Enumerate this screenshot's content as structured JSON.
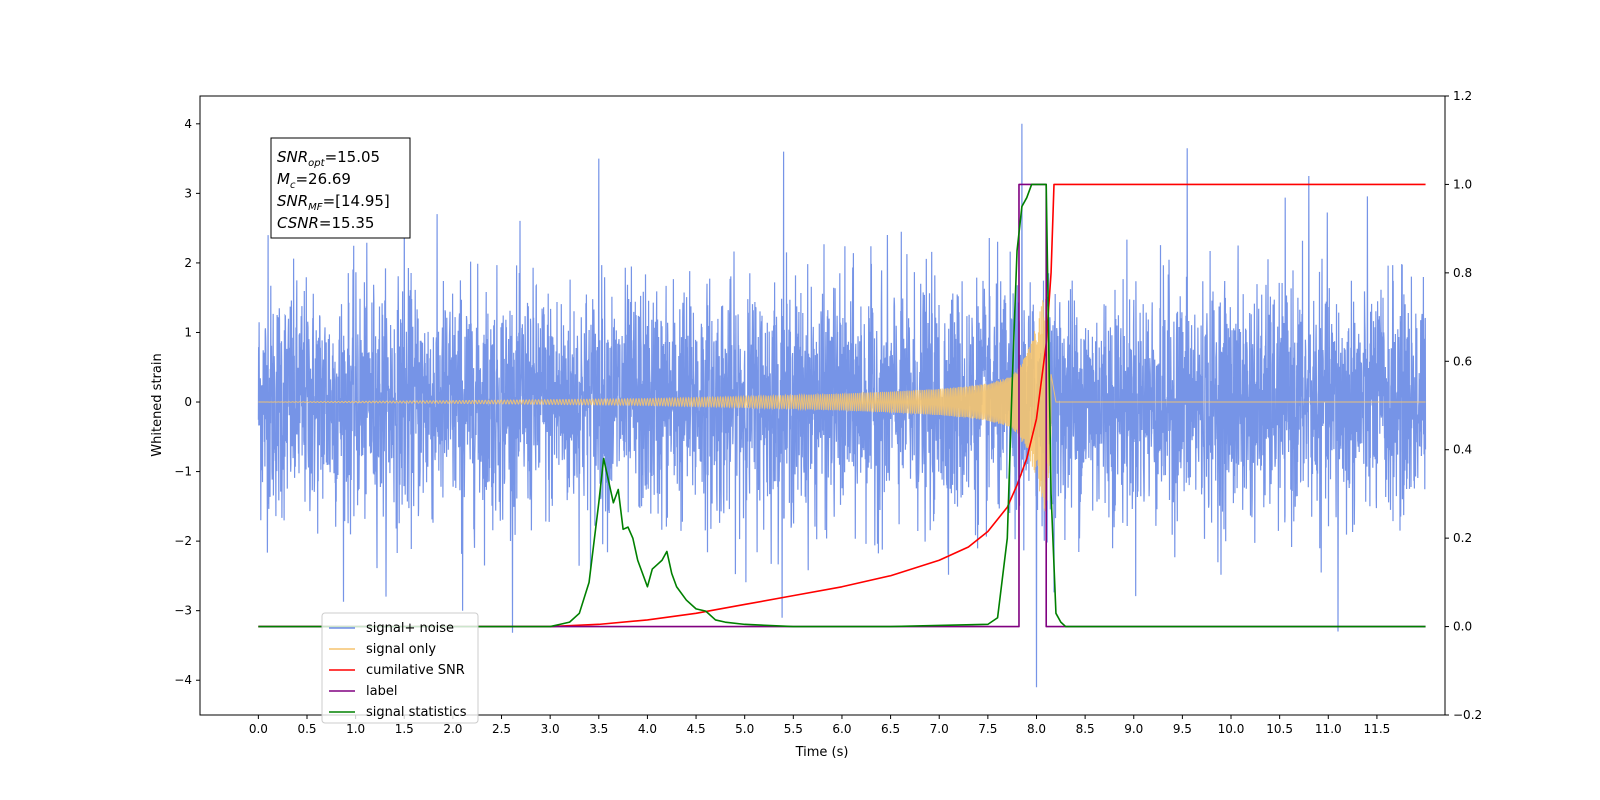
{
  "chart_data": {
    "type": "line",
    "xlabel": "Time (s)",
    "ylabel": "Whitened strain",
    "xlim": [
      -0.6,
      12.2
    ],
    "ylim": [
      -4.5,
      4.4
    ],
    "ylim_right": [
      -0.2,
      1.2
    ],
    "grid": false,
    "legend_position": "lower-left",
    "x_ticks": [
      "0.0",
      "0.5",
      "1.0",
      "1.5",
      "2.0",
      "2.5",
      "3.0",
      "3.5",
      "4.0",
      "4.5",
      "5.0",
      "5.5",
      "6.0",
      "6.5",
      "7.0",
      "7.5",
      "8.0",
      "8.5",
      "9.0",
      "9.5",
      "10.0",
      "10.5",
      "11.0",
      "11.5"
    ],
    "y_ticks": [
      "4",
      "3",
      "2",
      "1",
      "0",
      "−1",
      "−2",
      "−3",
      "−4"
    ],
    "y_ticks_right": [
      "1.2",
      "1.0",
      "0.8",
      "0.6",
      "0.4",
      "0.2",
      "0.0",
      "−0.2"
    ],
    "annotation": [
      {
        "name": "SNR",
        "sub": "opt",
        "value": "=15.05"
      },
      {
        "name": "M",
        "sub": "c",
        "value": "=26.69"
      },
      {
        "name": "SNR",
        "sub": "MF",
        "value": "=[14.95]"
      },
      {
        "name": "CSNR",
        "sub": "",
        "value": "=15.35"
      }
    ],
    "legend": [
      {
        "label": "signal+ noise",
        "color": "#6f8ee6"
      },
      {
        "label": "signal only",
        "color": "#f5c46f"
      },
      {
        "label": "cumilative SNR",
        "color": "#ff0000"
      },
      {
        "label": "label",
        "color": "#800080"
      },
      {
        "label": "signal statistics",
        "color": "#008000"
      }
    ],
    "noise": {
      "name": "signal+ noise",
      "color": "#6f8ee6",
      "axis": "left",
      "x_range": [
        0.0,
        12.0
      ],
      "typical_range": [
        -1.5,
        1.5
      ],
      "spikes": [
        [
          0.1,
          2.4
        ],
        [
          1.5,
          2.9
        ],
        [
          3.5,
          3.5
        ],
        [
          5.4,
          3.6
        ],
        [
          7.85,
          4.0
        ],
        [
          8.0,
          -4.1
        ],
        [
          9.55,
          3.65
        ],
        [
          10.8,
          3.25
        ],
        [
          11.1,
          -3.3
        ],
        [
          5.4,
          -3.5
        ],
        [
          2.1,
          -3.0
        ]
      ]
    },
    "series": [
      {
        "name": "signal only",
        "color": "#f5c46f",
        "axis": "left",
        "x": [
          0.0,
          2.0,
          4.0,
          5.0,
          6.0,
          6.5,
          7.0,
          7.3,
          7.5,
          7.7,
          7.8,
          7.9,
          8.0,
          8.1,
          8.15,
          8.2,
          12.0
        ],
        "envelope": [
          0.0,
          0.02,
          0.05,
          0.08,
          0.12,
          0.15,
          0.19,
          0.23,
          0.27,
          0.35,
          0.45,
          0.7,
          1.1,
          1.7,
          0.4,
          0.0,
          0.0
        ]
      },
      {
        "name": "cumilative SNR",
        "color": "#ff0000",
        "axis": "right",
        "x": [
          0.0,
          3.0,
          3.5,
          4.0,
          4.5,
          5.0,
          5.5,
          6.0,
          6.5,
          7.0,
          7.3,
          7.5,
          7.7,
          7.8,
          7.9,
          8.0,
          8.1,
          8.15,
          8.18,
          12.0
        ],
        "y": [
          0.0,
          0.0,
          0.005,
          0.015,
          0.03,
          0.05,
          0.07,
          0.09,
          0.115,
          0.15,
          0.18,
          0.215,
          0.27,
          0.32,
          0.38,
          0.47,
          0.64,
          0.8,
          1.0,
          1.0
        ]
      },
      {
        "name": "label",
        "color": "#800080",
        "axis": "right",
        "x": [
          0.0,
          7.82,
          7.82,
          8.1,
          8.1,
          12.0
        ],
        "y": [
          0.0,
          0.0,
          1.0,
          1.0,
          0.0,
          0.0
        ]
      },
      {
        "name": "signal statistics",
        "color": "#008000",
        "axis": "right",
        "x": [
          0.0,
          3.0,
          3.1,
          3.2,
          3.3,
          3.4,
          3.5,
          3.55,
          3.6,
          3.65,
          3.7,
          3.75,
          3.8,
          3.85,
          3.9,
          4.0,
          4.05,
          4.1,
          4.15,
          4.2,
          4.25,
          4.3,
          4.4,
          4.5,
          4.6,
          4.7,
          4.8,
          5.0,
          5.5,
          6.5,
          7.5,
          7.6,
          7.7,
          7.75,
          7.8,
          7.85,
          7.9,
          7.95,
          8.0,
          8.05,
          8.1,
          8.15,
          8.2,
          8.25,
          8.3,
          12.0
        ],
        "y": [
          0.0,
          0.0,
          0.005,
          0.01,
          0.03,
          0.1,
          0.28,
          0.38,
          0.33,
          0.28,
          0.31,
          0.22,
          0.225,
          0.2,
          0.15,
          0.09,
          0.13,
          0.14,
          0.15,
          0.17,
          0.12,
          0.09,
          0.06,
          0.04,
          0.035,
          0.015,
          0.01,
          0.005,
          0.0,
          0.0,
          0.005,
          0.02,
          0.2,
          0.55,
          0.85,
          0.95,
          0.97,
          1.0,
          1.0,
          1.0,
          1.0,
          0.3,
          0.03,
          0.01,
          0.0,
          0.0
        ]
      }
    ]
  }
}
